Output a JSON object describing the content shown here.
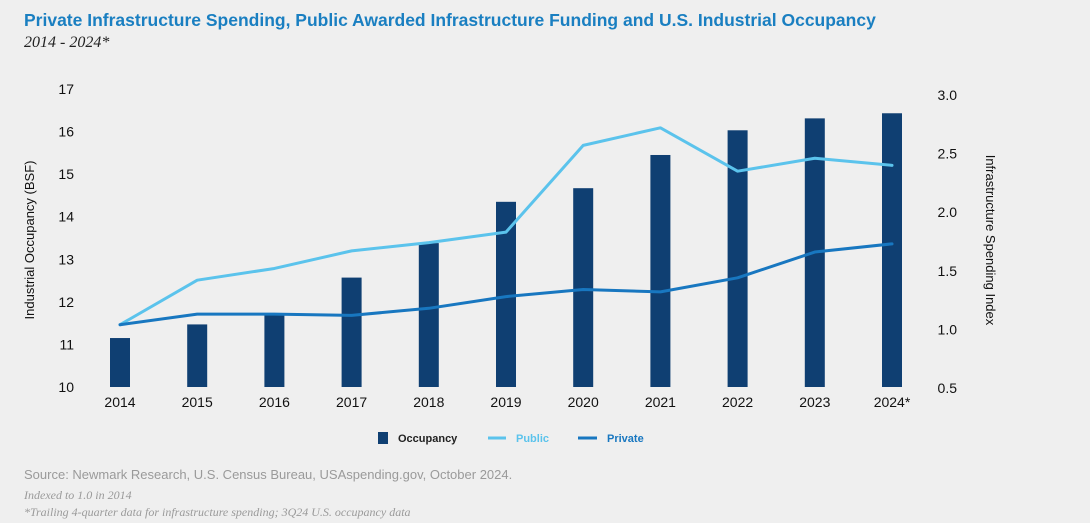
{
  "title": "Private Infrastructure Spending, Public Awarded Infrastructure Funding and U.S. Industrial Occupancy",
  "subtitle": "2014 - 2024*",
  "source": "Source:  Newmark Research, U.S. Census Bureau, USAspending.gov, October 2024.",
  "note1": "Indexed to 1.0 in 2014",
  "note2": "*Trailing 4-quarter data for infrastructure spending; 3Q24 U.S. occupancy data",
  "colors": {
    "occupancy": "#0f3f72",
    "public": "#5bc3ec",
    "private": "#1877c0",
    "axis_text": "#111111"
  },
  "chart_data": {
    "type": "bar",
    "categories": [
      "2014",
      "2015",
      "2016",
      "2017",
      "2018",
      "2019",
      "2020",
      "2021",
      "2022",
      "2023",
      "2024*"
    ],
    "ylabel": "Industrial Occupancy (BSF)",
    "y2label": "Infrastructure Spending Index",
    "ylim": [
      10,
      17
    ],
    "yticks": [
      "10",
      "11",
      "12",
      "13",
      "14",
      "15",
      "16",
      "17"
    ],
    "y2lim": [
      0.5,
      3.0
    ],
    "y2ticks": [
      "0.5",
      "1.0",
      "1.5",
      "2.0",
      "2.5",
      "3.0"
    ],
    "grid": false,
    "legend_position": "bottom",
    "series": [
      {
        "name": "Occupancy",
        "type": "bar",
        "axis": "left",
        "values": [
          11.15,
          11.47,
          11.72,
          12.57,
          13.38,
          14.35,
          14.67,
          15.45,
          16.03,
          16.31,
          16.43
        ]
      },
      {
        "name": "Public",
        "type": "line",
        "axis": "right",
        "values": [
          1.04,
          1.42,
          1.52,
          1.67,
          1.74,
          1.83,
          2.57,
          2.72,
          2.35,
          2.46,
          2.4
        ]
      },
      {
        "name": "Private",
        "type": "line",
        "axis": "right",
        "values": [
          1.04,
          1.13,
          1.13,
          1.12,
          1.18,
          1.28,
          1.34,
          1.32,
          1.44,
          1.66,
          1.73
        ]
      }
    ]
  }
}
